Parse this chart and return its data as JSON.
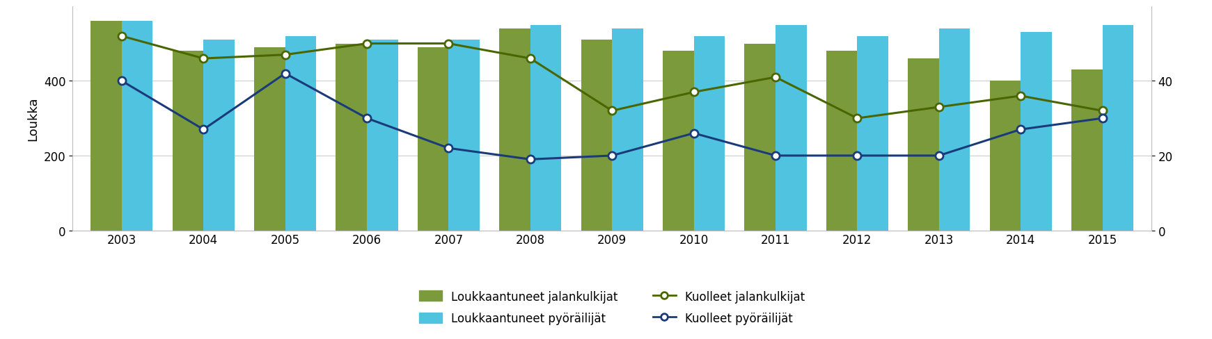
{
  "years": [
    2003,
    2004,
    2005,
    2006,
    2007,
    2008,
    2009,
    2010,
    2011,
    2012,
    2013,
    2014,
    2015
  ],
  "loukkaantuneet_jalankulkijat": [
    560,
    480,
    490,
    500,
    490,
    540,
    510,
    480,
    500,
    480,
    460,
    400,
    430
  ],
  "loukkaantuneet_pyorailijat": [
    560,
    510,
    520,
    510,
    510,
    550,
    540,
    520,
    550,
    520,
    540,
    530,
    550
  ],
  "kuolleet_jalankulkijat": [
    52,
    46,
    47,
    50,
    50,
    46,
    32,
    37,
    41,
    30,
    33,
    36,
    32
  ],
  "kuolleet_pyorailijat": [
    40,
    27,
    42,
    30,
    22,
    19,
    20,
    26,
    20,
    20,
    20,
    27,
    30
  ],
  "bar_color_jalankulkija": "#7a9a3b",
  "bar_color_pyorailija": "#4fc3e0",
  "line_color_jalankulkija": "#4a6600",
  "line_color_pyorailija": "#1a3a7a",
  "ylabel_left": "Loukka",
  "ylim_left": [
    0,
    600
  ],
  "ylim_right": [
    0,
    60
  ],
  "yticks_left": [
    0,
    200,
    400
  ],
  "yticks_right": [
    0,
    20,
    40
  ],
  "background_color": "#ffffff",
  "legend_items": [
    "Loukkaantuneet jalankulkijat",
    "Loukkaantuneet pyöräilijät",
    "Kuolleet jalankulkijat",
    "Kuolleet pyöräilijät"
  ]
}
